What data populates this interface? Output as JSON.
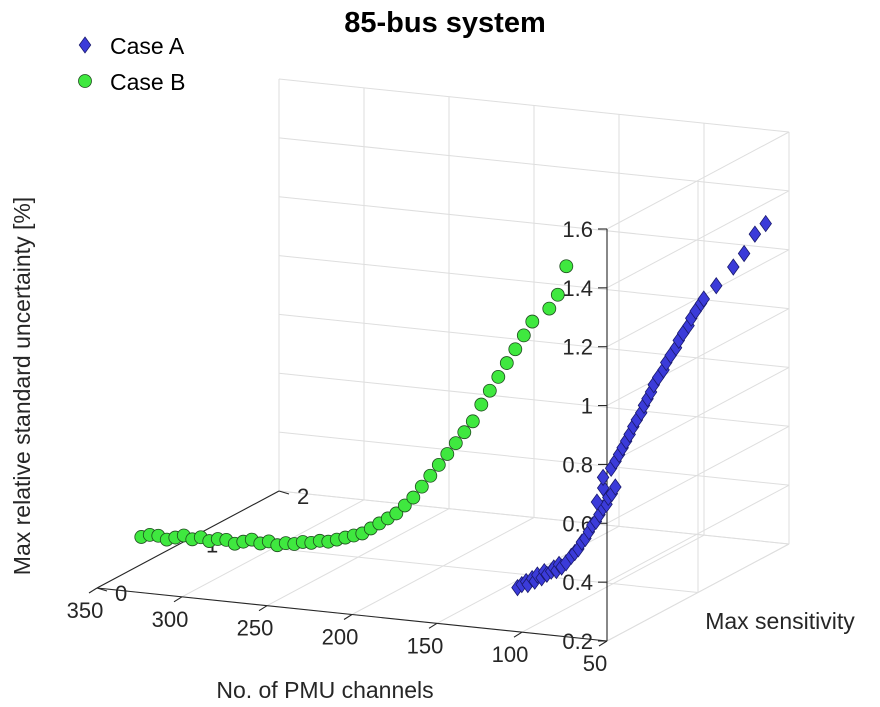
{
  "chart_data": {
    "type": "scatter",
    "title": "85-bus system",
    "xlabel": "No. of PMU channels",
    "ylabel": "Max sensitivity",
    "zlabel": "Max relative standard uncertainty [%]",
    "x_ticks": [
      "350",
      "300",
      "250",
      "200",
      "150",
      "100",
      "50"
    ],
    "y_ticks": [
      "0",
      "1",
      "2"
    ],
    "z_ticks": [
      "0.2",
      "0.4",
      "0.6",
      "0.8",
      "1",
      "1.2",
      "1.4",
      "1.6"
    ],
    "xlim": [
      50,
      350
    ],
    "ylim": [
      0,
      2
    ],
    "zlim": [
      0.2,
      1.6
    ],
    "grid": true,
    "legend_position": "top-left",
    "series": [
      {
        "name": "Case A",
        "color": "#3b3bd9",
        "marker": "diamond",
        "points": [
          [
            108,
            0.1,
            0.33
          ],
          [
            106,
            0.11,
            0.34
          ],
          [
            104,
            0.12,
            0.35
          ],
          [
            103,
            0.12,
            0.34
          ],
          [
            101,
            0.13,
            0.36
          ],
          [
            100,
            0.14,
            0.35
          ],
          [
            99,
            0.15,
            0.37
          ],
          [
            97,
            0.16,
            0.36
          ],
          [
            96,
            0.17,
            0.38
          ],
          [
            95,
            0.18,
            0.37
          ],
          [
            93,
            0.19,
            0.38
          ],
          [
            92,
            0.2,
            0.39
          ],
          [
            91,
            0.21,
            0.38
          ],
          [
            90,
            0.22,
            0.4
          ],
          [
            89,
            0.23,
            0.39
          ],
          [
            88,
            0.26,
            0.4
          ],
          [
            86,
            0.28,
            0.42
          ],
          [
            85,
            0.3,
            0.43
          ],
          [
            84,
            0.32,
            0.44
          ],
          [
            83,
            0.34,
            0.46
          ],
          [
            82,
            0.36,
            0.47
          ],
          [
            81,
            0.38,
            0.49
          ],
          [
            80,
            0.4,
            0.51
          ],
          [
            79,
            0.42,
            0.52
          ],
          [
            78,
            0.44,
            0.54
          ],
          [
            77,
            0.46,
            0.56
          ],
          [
            76,
            0.48,
            0.57
          ],
          [
            76,
            0.5,
            0.59
          ],
          [
            75,
            0.52,
            0.6
          ],
          [
            74,
            0.54,
            0.62
          ],
          [
            80,
            0.45,
            0.58
          ],
          [
            79,
            0.5,
            0.62
          ],
          [
            78,
            0.48,
            0.66
          ],
          [
            77,
            0.55,
            0.68
          ],
          [
            76,
            0.58,
            0.7
          ],
          [
            75,
            0.6,
            0.72
          ],
          [
            74,
            0.62,
            0.74
          ],
          [
            73,
            0.64,
            0.76
          ],
          [
            72,
            0.66,
            0.78
          ],
          [
            72,
            0.7,
            0.8
          ],
          [
            71,
            0.72,
            0.82
          ],
          [
            70,
            0.75,
            0.84
          ],
          [
            70,
            0.78,
            0.86
          ],
          [
            69,
            0.8,
            0.88
          ],
          [
            68,
            0.82,
            0.9
          ],
          [
            68,
            0.85,
            0.92
          ],
          [
            67,
            0.88,
            0.94
          ],
          [
            66,
            0.92,
            0.96
          ],
          [
            66,
            0.95,
            0.98
          ],
          [
            65,
            0.98,
            1.0
          ],
          [
            64,
            1.02,
            1.02
          ],
          [
            64,
            1.05,
            1.04
          ],
          [
            63,
            1.08,
            1.06
          ],
          [
            62,
            1.12,
            1.08
          ],
          [
            62,
            1.15,
            1.1
          ],
          [
            61,
            1.18,
            1.12
          ],
          [
            60,
            1.22,
            1.14
          ],
          [
            60,
            1.25,
            1.15
          ],
          [
            58,
            1.35,
            1.18
          ],
          [
            56,
            1.5,
            1.22
          ],
          [
            55,
            1.6,
            1.25
          ],
          [
            54,
            1.7,
            1.3
          ],
          [
            53,
            1.8,
            1.32
          ]
        ]
      },
      {
        "name": "Case B",
        "color": "#3fe83f",
        "marker": "circle",
        "points": [
          [
            340,
            0.3,
            0.33
          ],
          [
            335,
            0.3,
            0.34
          ],
          [
            330,
            0.3,
            0.34
          ],
          [
            325,
            0.3,
            0.33
          ],
          [
            320,
            0.3,
            0.34
          ],
          [
            315,
            0.3,
            0.35
          ],
          [
            310,
            0.3,
            0.34
          ],
          [
            305,
            0.3,
            0.35
          ],
          [
            300,
            0.3,
            0.34
          ],
          [
            295,
            0.3,
            0.35
          ],
          [
            290,
            0.3,
            0.35
          ],
          [
            285,
            0.3,
            0.34
          ],
          [
            280,
            0.3,
            0.35
          ],
          [
            275,
            0.3,
            0.36
          ],
          [
            270,
            0.3,
            0.35
          ],
          [
            265,
            0.3,
            0.36
          ],
          [
            260,
            0.3,
            0.35
          ],
          [
            255,
            0.3,
            0.36
          ],
          [
            250,
            0.3,
            0.36
          ],
          [
            245,
            0.3,
            0.37
          ],
          [
            240,
            0.3,
            0.37
          ],
          [
            235,
            0.3,
            0.38
          ],
          [
            230,
            0.3,
            0.38
          ],
          [
            225,
            0.3,
            0.39
          ],
          [
            220,
            0.3,
            0.4
          ],
          [
            215,
            0.3,
            0.41
          ],
          [
            210,
            0.3,
            0.42
          ],
          [
            205,
            0.3,
            0.44
          ],
          [
            200,
            0.3,
            0.46
          ],
          [
            195,
            0.3,
            0.48
          ],
          [
            190,
            0.3,
            0.5
          ],
          [
            185,
            0.3,
            0.53
          ],
          [
            180,
            0.3,
            0.56
          ],
          [
            175,
            0.3,
            0.6
          ],
          [
            170,
            0.3,
            0.64
          ],
          [
            165,
            0.3,
            0.68
          ],
          [
            160,
            0.3,
            0.72
          ],
          [
            155,
            0.3,
            0.76
          ],
          [
            150,
            0.3,
            0.8
          ],
          [
            145,
            0.3,
            0.84
          ],
          [
            140,
            0.3,
            0.9
          ],
          [
            135,
            0.3,
            0.95
          ],
          [
            130,
            0.3,
            1.0
          ],
          [
            125,
            0.3,
            1.05
          ],
          [
            120,
            0.3,
            1.1
          ],
          [
            115,
            0.3,
            1.15
          ],
          [
            110,
            0.3,
            1.2
          ],
          [
            100,
            0.3,
            1.25
          ],
          [
            95,
            0.3,
            1.3
          ],
          [
            90,
            0.3,
            1.4
          ]
        ]
      }
    ]
  }
}
